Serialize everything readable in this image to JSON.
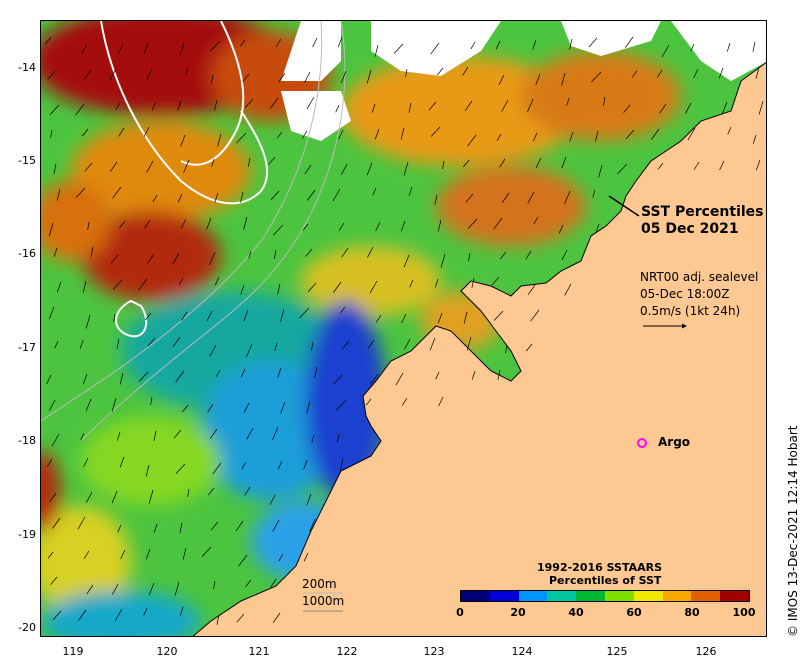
{
  "map": {
    "title": [
      "SST Percentiles",
      "05 Dec 2021"
    ],
    "current_info": [
      "NRT00 adj. sealevel",
      "05-Dec 18:00Z",
      "0.5m/s (1kt 24h)"
    ],
    "copyright": "© IMOS 13-Dec-2021 12:14 Hobart",
    "argo_label": "Argo",
    "scale_labels": [
      "200m",
      "1000m"
    ],
    "lat_ticks": [
      "-14",
      "-15",
      "-16",
      "-17",
      "-18",
      "-19",
      "-20"
    ],
    "lon_ticks": [
      "119",
      "120",
      "121",
      "122",
      "123",
      "124",
      "125",
      "126"
    ],
    "colorbar": {
      "title": [
        "1992-2016 SSTAARS",
        "Percentiles of SST"
      ],
      "labels": [
        "0",
        "20",
        "40",
        "60",
        "80",
        "100"
      ],
      "colors": [
        "#00007a",
        "#0000d8",
        "#0096ff",
        "#00c8a0",
        "#00b830",
        "#7ee000",
        "#f0e800",
        "#f8a800",
        "#e06000",
        "#a00000"
      ]
    },
    "land_color": "#fdc891",
    "arrow_color": "#000000",
    "contour_color": "#ffffff"
  }
}
